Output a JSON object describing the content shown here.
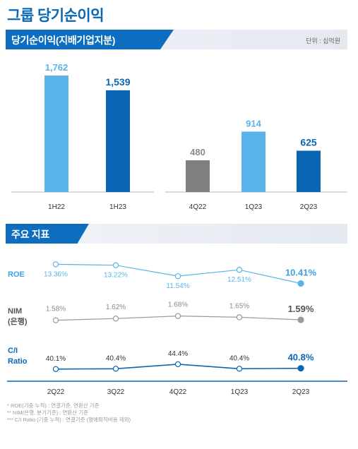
{
  "page_title": "그룹 당기순이익",
  "section1": {
    "title": "당기순이익(지배기업지분)",
    "unit": "단위 : 십억원"
  },
  "section2": {
    "title": "주요 지표"
  },
  "colors": {
    "light_blue": "#5ab4ea",
    "dark_blue": "#0a66b2",
    "gray": "#7f7f7f",
    "roe_line": "#5ab4ea",
    "nim_line": "#9a9a9a",
    "ci_line": "#0a66b2"
  },
  "chart_data": [
    {
      "type": "bar",
      "categories": [
        "1H22",
        "1H23"
      ],
      "values": [
        1762,
        1539
      ],
      "value_labels": [
        "1,762",
        "1,539"
      ],
      "colors": [
        "#5ab4ea",
        "#0a66b2"
      ]
    },
    {
      "type": "bar",
      "categories": [
        "4Q22",
        "1Q23",
        "2Q23"
      ],
      "values": [
        480,
        914,
        625
      ],
      "value_labels": [
        "480",
        "914",
        "625"
      ],
      "colors": [
        "#7f7f7f",
        "#5ab4ea",
        "#0a66b2"
      ]
    },
    {
      "type": "line",
      "categories": [
        "2Q22",
        "3Q22",
        "4Q22",
        "1Q23",
        "2Q23"
      ],
      "series": [
        {
          "name": "ROE",
          "values": [
            13.36,
            13.22,
            11.54,
            12.51,
            10.41
          ],
          "labels": [
            "13.36%",
            "13.22%",
            "11.54%",
            "12.51%",
            "10.41%"
          ]
        },
        {
          "name": "NIM (은행)",
          "values": [
            1.58,
            1.62,
            1.68,
            1.65,
            1.59
          ],
          "labels": [
            "1.58%",
            "1.62%",
            "1.68%",
            "1.65%",
            "1.59%"
          ]
        },
        {
          "name": "C/I Ratio",
          "values": [
            40.1,
            40.4,
            44.4,
            40.4,
            40.8
          ],
          "labels": [
            "40.1%",
            "40.4%",
            "44.4%",
            "40.4%",
            "40.8%"
          ]
        }
      ]
    }
  ],
  "footnotes": [
    "* ROE(기중 누적) : 연결기준, 연환산 기준",
    "** NIM(은행, 분기기준) : 연환산 기준",
    "*** C/I Ratio (기중 누적) : 연결기준 (명예퇴직비용 제외)"
  ]
}
